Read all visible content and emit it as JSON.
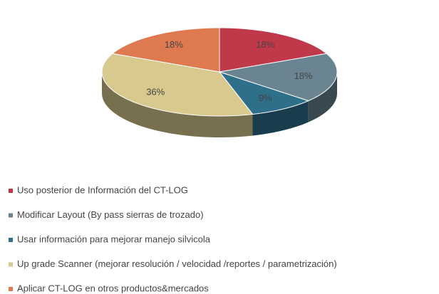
{
  "chart_data": {
    "type": "pie",
    "categories": [
      "Uso posterior de Información del CT-LOG",
      "Modificar Layout (By pass sierras de trozado)",
      "Usar información para mejorar manejo silvicola",
      "Up grade Scanner (mejorar resolución / velocidad /reportes / parametrización)",
      "Aplicar CT-LOG en otros productos&mercados"
    ],
    "values": [
      18,
      18,
      9,
      36,
      18
    ],
    "value_labels": [
      "18%",
      "18%",
      "9%",
      "36%",
      "18%"
    ],
    "colors": [
      "#c0394b",
      "#6a8591",
      "#2e6f8a",
      "#d8c98e",
      "#df7a50"
    ],
    "legend": "bottom"
  }
}
